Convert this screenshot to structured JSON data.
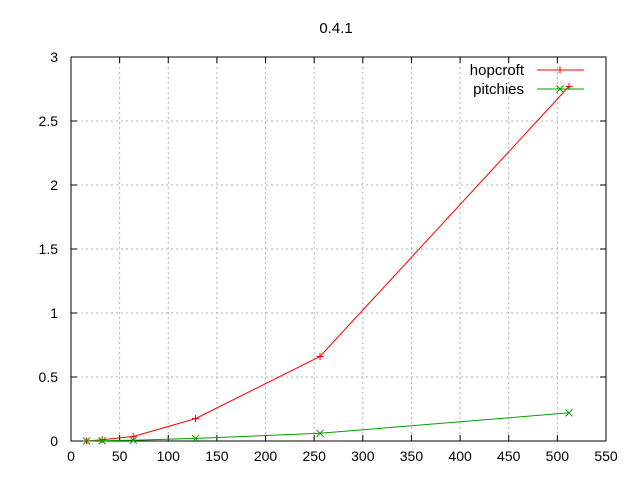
{
  "chart_data": {
    "type": "line",
    "title": "0.4.1",
    "xlabel": "",
    "ylabel": "",
    "xlim": [
      0,
      550
    ],
    "ylim": [
      0,
      3
    ],
    "xticks": [
      0,
      50,
      100,
      150,
      200,
      250,
      300,
      350,
      400,
      450,
      500,
      550
    ],
    "yticks": [
      0,
      0.5,
      1,
      1.5,
      2,
      2.5,
      3
    ],
    "xtick_labels": [
      "0",
      "50",
      "100",
      "150",
      "200",
      "250",
      "300",
      "350",
      "400",
      "450",
      "500",
      "550"
    ],
    "ytick_labels": [
      "0",
      "0.5",
      "1",
      "1.5",
      "2",
      "2.5",
      "3"
    ],
    "grid": true,
    "legend_position": "top-right",
    "series": [
      {
        "name": "hopcroft",
        "color": "#ff0000",
        "marker": "plus",
        "x": [
          16,
          32,
          64,
          128,
          256,
          512
        ],
        "y": [
          0.0,
          0.01,
          0.035,
          0.175,
          0.66,
          2.77
        ]
      },
      {
        "name": "pitchies",
        "color": "#00a000",
        "marker": "cross",
        "x": [
          16,
          32,
          64,
          128,
          256,
          512
        ],
        "y": [
          0.0,
          0.002,
          0.006,
          0.02,
          0.06,
          0.22
        ]
      }
    ]
  }
}
